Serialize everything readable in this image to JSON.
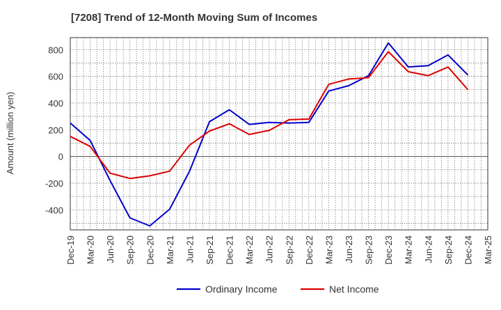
{
  "chart_data": {
    "type": "line",
    "title": "[7208]  Trend of 12-Month Moving Sum of Incomes",
    "ylabel": "Amount (million yen)",
    "xlabel": "",
    "ylim": [
      -550,
      890
    ],
    "yticks": [
      -400,
      -200,
      0,
      200,
      400,
      600,
      800
    ],
    "grid": true,
    "legend_position": "bottom-center",
    "categories": [
      "Dec-19",
      "Mar-20",
      "Jun-20",
      "Sep-20",
      "Dec-20",
      "Mar-21",
      "Jun-21",
      "Sep-21",
      "Dec-21",
      "Mar-22",
      "Jun-22",
      "Sep-22",
      "Dec-22",
      "Mar-23",
      "Jun-23",
      "Sep-23",
      "Dec-23",
      "Mar-24",
      "Jun-24",
      "Sep-24",
      "Dec-24",
      "Mar-25"
    ],
    "series": [
      {
        "name": "Ordinary Income",
        "color": "#0000cc",
        "values": [
          250,
          120,
          -180,
          -460,
          -520,
          -395,
          -110,
          260,
          350,
          240,
          255,
          250,
          255,
          490,
          530,
          605,
          850,
          670,
          680,
          760,
          610,
          null
        ]
      },
      {
        "name": "Net Income",
        "color": "#dd0000",
        "values": [
          150,
          75,
          -125,
          -165,
          -145,
          -110,
          85,
          190,
          245,
          165,
          195,
          275,
          280,
          540,
          580,
          590,
          785,
          635,
          605,
          670,
          500,
          null
        ]
      }
    ]
  }
}
